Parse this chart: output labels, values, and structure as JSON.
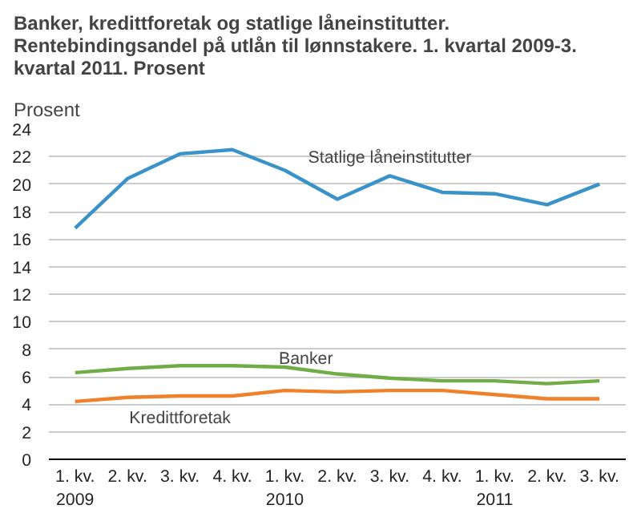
{
  "chart_data": {
    "type": "line",
    "title": "Banker, kredittforetak og statlige låneinstitutter. Rentebindingsandel på utlån til lønnstakere. 1. kvartal 2009-3. kvartal 2011. Prosent",
    "ylabel": "Prosent",
    "categories": [
      "1. kv.\n2009",
      "2. kv.",
      "3. kv.",
      "4. kv.",
      "1. kv.\n2010",
      "2. kv.",
      "3. kv.",
      "4. kv.",
      "1. kv.\n2011",
      "2. kv.",
      "3. kv."
    ],
    "series": [
      {
        "name": "Statlige låneinstitutter",
        "color": "#3a93c8",
        "values": [
          16.8,
          20.4,
          22.2,
          22.5,
          21.0,
          18.9,
          20.6,
          19.4,
          19.3,
          18.5,
          20.0
        ]
      },
      {
        "name": "Banker",
        "color": "#70ad47",
        "values": [
          6.3,
          6.6,
          6.8,
          6.8,
          6.7,
          6.2,
          5.9,
          5.7,
          5.7,
          5.5,
          5.7
        ]
      },
      {
        "name": "Kredittforetak",
        "color": "#f0812a",
        "values": [
          4.2,
          4.5,
          4.6,
          4.6,
          5.0,
          4.9,
          5.0,
          5.0,
          4.7,
          4.4,
          4.4
        ]
      }
    ],
    "ylim": [
      0,
      24
    ],
    "yticks": [
      0,
      2,
      4,
      6,
      8,
      10,
      12,
      14,
      16,
      18,
      20,
      22,
      24
    ],
    "grid": "y",
    "legend": false,
    "marker": "none",
    "line_style": "solid"
  }
}
